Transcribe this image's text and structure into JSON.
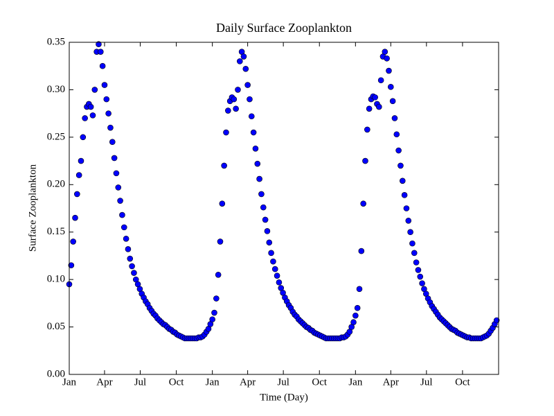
{
  "chart_data": {
    "type": "scatter",
    "title": "Daily Surface Zooplankton",
    "x_label": "Time (Day)",
    "y_label": "Surface Zooplankton",
    "color": "#0000ff",
    "edge_color": "#000000",
    "xlim": [
      0,
      1095
    ],
    "ylim": [
      0,
      0.35
    ],
    "xticks": [
      {
        "value": 0,
        "label": "Jan"
      },
      {
        "value": 90,
        "label": "Apr"
      },
      {
        "value": 181,
        "label": "Jul"
      },
      {
        "value": 273,
        "label": "Oct"
      },
      {
        "value": 365,
        "label": "Jan"
      },
      {
        "value": 455,
        "label": "Apr"
      },
      {
        "value": 546,
        "label": "Jul"
      },
      {
        "value": 638,
        "label": "Oct"
      },
      {
        "value": 730,
        "label": "Jan"
      },
      {
        "value": 820,
        "label": "Apr"
      },
      {
        "value": 911,
        "label": "Jul"
      },
      {
        "value": 1003,
        "label": "Oct"
      }
    ],
    "yticks": [
      {
        "value": 0,
        "label": "0.00"
      },
      0.05,
      {
        "value": 0.1,
        "label": "0.10"
      },
      0.15,
      {
        "value": 0.2,
        "label": "0.20"
      },
      0.25,
      {
        "value": 0.3,
        "label": "0.30"
      },
      0.35
    ],
    "x": [
      0,
      5,
      10,
      15,
      20,
      25,
      30,
      35,
      40,
      45,
      50,
      55,
      60,
      65,
      70,
      75,
      80,
      85,
      90,
      95,
      100,
      105,
      110,
      115,
      120,
      125,
      130,
      135,
      140,
      145,
      150,
      155,
      160,
      165,
      170,
      175,
      180,
      185,
      190,
      195,
      200,
      205,
      210,
      215,
      220,
      225,
      230,
      235,
      240,
      245,
      250,
      255,
      260,
      265,
      270,
      275,
      280,
      285,
      290,
      295,
      300,
      305,
      310,
      315,
      320,
      325,
      330,
      335,
      340,
      345,
      350,
      355,
      360,
      365,
      370,
      375,
      380,
      385,
      390,
      395,
      400,
      405,
      410,
      415,
      420,
      425,
      430,
      435,
      440,
      445,
      450,
      455,
      460,
      465,
      470,
      475,
      480,
      485,
      490,
      495,
      500,
      505,
      510,
      515,
      520,
      525,
      530,
      535,
      540,
      545,
      550,
      555,
      560,
      565,
      570,
      575,
      580,
      585,
      590,
      595,
      600,
      605,
      610,
      615,
      620,
      625,
      630,
      635,
      640,
      645,
      650,
      655,
      660,
      665,
      670,
      675,
      680,
      685,
      690,
      695,
      700,
      705,
      710,
      715,
      720,
      725,
      730,
      735,
      740,
      745,
      750,
      755,
      760,
      765,
      770,
      775,
      780,
      785,
      790,
      795,
      800,
      805,
      810,
      815,
      820,
      825,
      830,
      835,
      840,
      845,
      850,
      855,
      860,
      865,
      870,
      875,
      880,
      885,
      890,
      895,
      900,
      905,
      910,
      915,
      920,
      925,
      930,
      935,
      940,
      945,
      950,
      955,
      960,
      965,
      970,
      975,
      980,
      985,
      990,
      995,
      1000,
      1005,
      1010,
      1015,
      1020,
      1025,
      1030,
      1035,
      1040,
      1045,
      1050,
      1055,
      1060,
      1065,
      1070,
      1075,
      1080,
      1085,
      1090
    ],
    "values": [
      0.095,
      0.115,
      0.14,
      0.165,
      0.19,
      0.21,
      0.225,
      0.25,
      0.27,
      0.282,
      0.285,
      0.282,
      0.273,
      0.3,
      0.34,
      0.348,
      0.34,
      0.325,
      0.305,
      0.29,
      0.275,
      0.26,
      0.245,
      0.228,
      0.212,
      0.197,
      0.183,
      0.168,
      0.155,
      0.143,
      0.132,
      0.122,
      0.114,
      0.107,
      0.1,
      0.095,
      0.09,
      0.085,
      0.081,
      0.077,
      0.074,
      0.07,
      0.067,
      0.064,
      0.062,
      0.059,
      0.057,
      0.055,
      0.053,
      0.052,
      0.05,
      0.048,
      0.047,
      0.045,
      0.044,
      0.042,
      0.041,
      0.04,
      0.039,
      0.038,
      0.038,
      0.038,
      0.038,
      0.038,
      0.038,
      0.038,
      0.039,
      0.039,
      0.04,
      0.042,
      0.045,
      0.048,
      0.053,
      0.058,
      0.065,
      0.08,
      0.105,
      0.14,
      0.18,
      0.22,
      0.255,
      0.278,
      0.288,
      0.292,
      0.29,
      0.28,
      0.3,
      0.33,
      0.34,
      0.335,
      0.322,
      0.305,
      0.29,
      0.272,
      0.255,
      0.238,
      0.222,
      0.206,
      0.19,
      0.176,
      0.163,
      0.151,
      0.139,
      0.128,
      0.119,
      0.111,
      0.104,
      0.097,
      0.091,
      0.086,
      0.081,
      0.077,
      0.073,
      0.07,
      0.066,
      0.063,
      0.061,
      0.058,
      0.056,
      0.054,
      0.052,
      0.05,
      0.049,
      0.047,
      0.046,
      0.044,
      0.043,
      0.042,
      0.041,
      0.04,
      0.039,
      0.038,
      0.038,
      0.038,
      0.038,
      0.038,
      0.038,
      0.038,
      0.038,
      0.039,
      0.039,
      0.04,
      0.042,
      0.045,
      0.05,
      0.055,
      0.062,
      0.07,
      0.09,
      0.13,
      0.18,
      0.225,
      0.258,
      0.28,
      0.29,
      0.293,
      0.292,
      0.285,
      0.282,
      0.31,
      0.335,
      0.34,
      0.333,
      0.32,
      0.303,
      0.288,
      0.27,
      0.253,
      0.236,
      0.22,
      0.204,
      0.189,
      0.175,
      0.162,
      0.15,
      0.138,
      0.128,
      0.118,
      0.11,
      0.103,
      0.096,
      0.09,
      0.085,
      0.08,
      0.076,
      0.072,
      0.069,
      0.066,
      0.063,
      0.06,
      0.058,
      0.056,
      0.054,
      0.052,
      0.05,
      0.048,
      0.047,
      0.046,
      0.044,
      0.043,
      0.042,
      0.041,
      0.04,
      0.039,
      0.039,
      0.038,
      0.038,
      0.038,
      0.038,
      0.038,
      0.038,
      0.039,
      0.04,
      0.041,
      0.043,
      0.046,
      0.049,
      0.053,
      0.057
    ]
  }
}
